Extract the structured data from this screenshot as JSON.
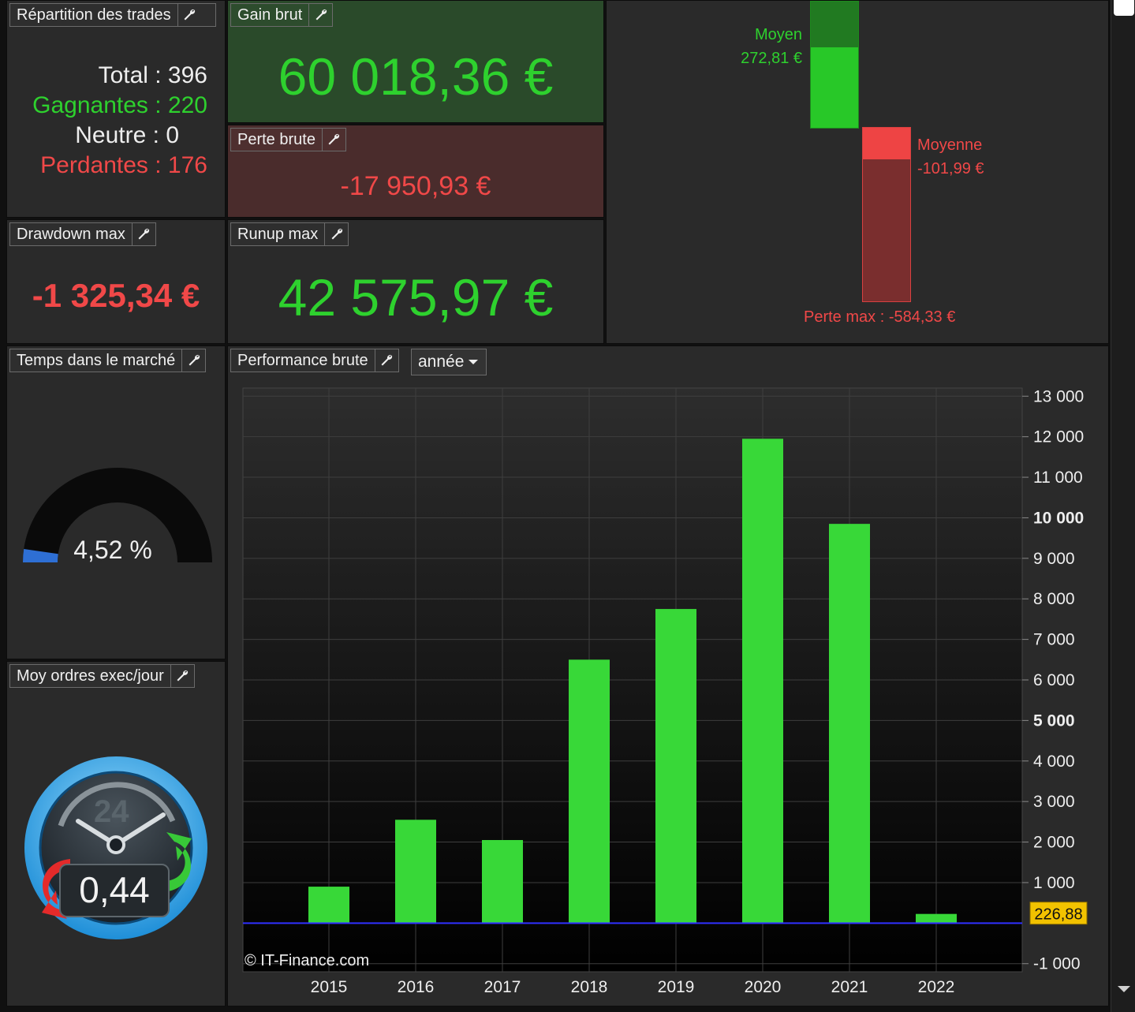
{
  "panels": {
    "repartition": {
      "title": "Répartition des trades",
      "total_label": "Total : 396",
      "gagnantes_label": "Gagnantes : 220",
      "neutre_label": "Neutre : 0",
      "perdantes_label": "Perdantes : 176"
    },
    "gain_brut": {
      "title": "Gain brut",
      "value": "60 018,36 €"
    },
    "perte_brute": {
      "title": "Perte brute",
      "value": "-17 950,93 €"
    },
    "drawdown": {
      "title": "Drawdown max",
      "value": "-1 325,34 €"
    },
    "runup": {
      "title": "Runup max",
      "value": "42 575,97 €"
    },
    "moy_bars": {
      "gain_label": "Moyen",
      "gain_value": "272,81 €",
      "loss_label": "Moyenne",
      "loss_value": "-101,99 €",
      "max_loss_label": "Perte max : -584,33 €"
    },
    "temps": {
      "title": "Temps dans le marché",
      "value": "4,52 %",
      "fraction": 0.0452
    },
    "ordres": {
      "title": "Moy ordres exec/jour",
      "value": "0,44",
      "clock_number": "24"
    },
    "performance": {
      "title": "Performance brute",
      "period": "année",
      "watermark": "© IT-Finance.com"
    }
  },
  "chart_data": {
    "type": "bar",
    "categories": [
      "2015",
      "2016",
      "2017",
      "2018",
      "2019",
      "2020",
      "2021",
      "2022"
    ],
    "values": [
      900,
      2550,
      2050,
      6500,
      7750,
      11950,
      9850,
      226.88
    ],
    "ylim": [
      -1200,
      13200
    ],
    "yticks": [
      {
        "v": 13000,
        "t": "13 000"
      },
      {
        "v": 12000,
        "t": "12 000"
      },
      {
        "v": 11000,
        "t": "11 000"
      },
      {
        "v": 10000,
        "t": "10 000",
        "bold": true
      },
      {
        "v": 9000,
        "t": "9 000"
      },
      {
        "v": 8000,
        "t": "8 000"
      },
      {
        "v": 7000,
        "t": "7 000"
      },
      {
        "v": 6000,
        "t": "6 000"
      },
      {
        "v": 5000,
        "t": "5 000",
        "bold": true
      },
      {
        "v": 4000,
        "t": "4 000"
      },
      {
        "v": 3000,
        "t": "3 000"
      },
      {
        "v": 2000,
        "t": "2 000"
      },
      {
        "v": 1000,
        "t": "1 000"
      },
      {
        "v": -1000,
        "t": "-1 000"
      }
    ],
    "last_value_label": "226,88",
    "bar_color": "#38d838",
    "zero_line_color": "#3030ff",
    "grid": true
  }
}
